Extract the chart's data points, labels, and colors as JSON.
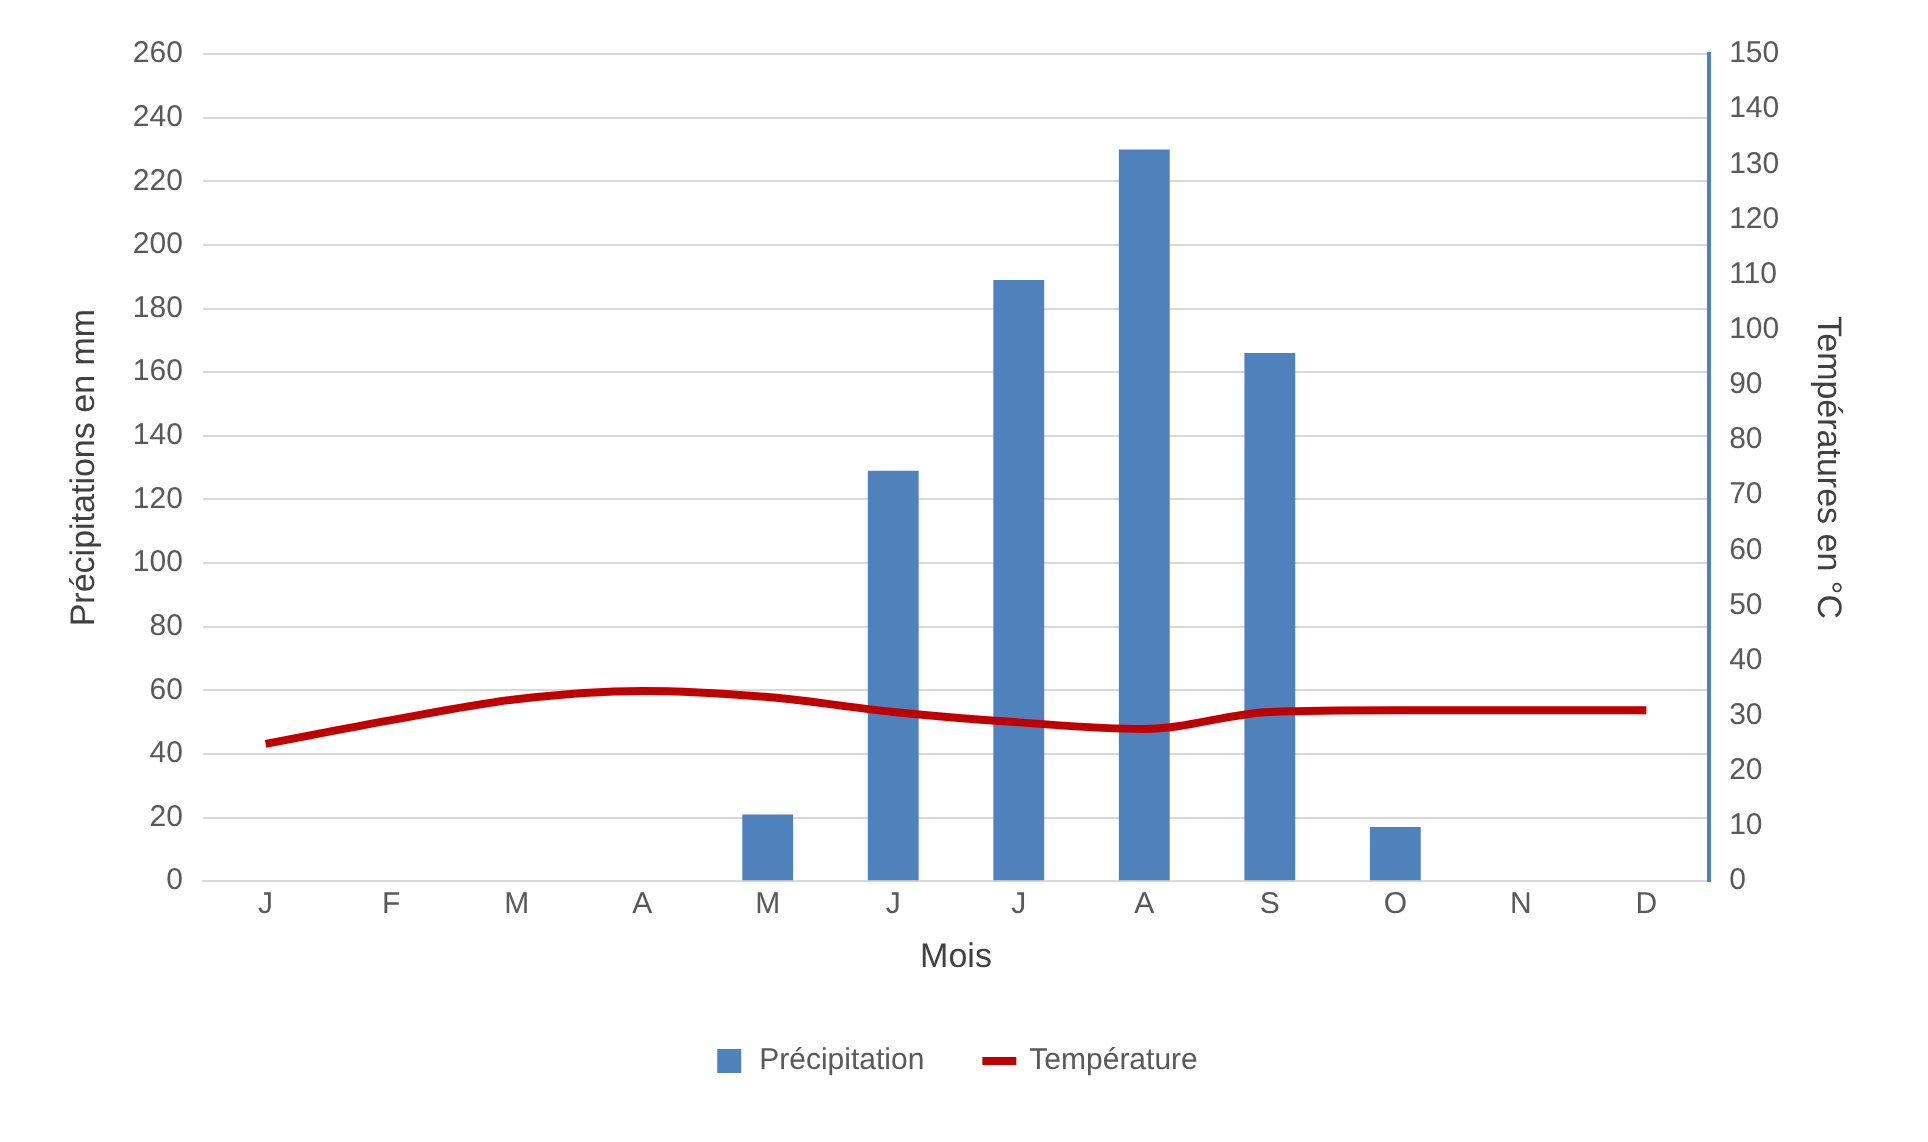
{
  "chart_data": {
    "type": "bar",
    "xlabel": "Mois",
    "ylabel": "Précipitations en mm",
    "y2label": "Températures en °C",
    "categories": [
      "J",
      "F",
      "M",
      "A",
      "M",
      "J",
      "J",
      "A",
      "S",
      "O",
      "N",
      "D"
    ],
    "series": [
      {
        "name": "Précipitation",
        "color": "#4f81bd",
        "values": [
          0,
          0,
          0,
          0,
          21,
          129,
          189,
          230,
          166,
          17,
          0,
          0
        ]
      },
      {
        "name": "Température",
        "type": "line",
        "axis": "y2",
        "color": "#c00000",
        "marker": "none",
        "line_style": "solid",
        "values": [
          24.9,
          29.2,
          33,
          34.5,
          33.4,
          30.7,
          28.8,
          27.6,
          30.7,
          31,
          31,
          31
        ]
      }
    ],
    "ylim": [
      0,
      260
    ],
    "yticks": [
      0,
      20,
      40,
      60,
      80,
      100,
      120,
      140,
      160,
      180,
      200,
      220,
      240,
      260
    ],
    "y2lim": [
      0,
      150
    ],
    "y2ticks": [
      0,
      10,
      20,
      30,
      40,
      50,
      60,
      70,
      80,
      90,
      100,
      110,
      120,
      130,
      140,
      150
    ],
    "grid": "y",
    "legend": "bottom"
  }
}
